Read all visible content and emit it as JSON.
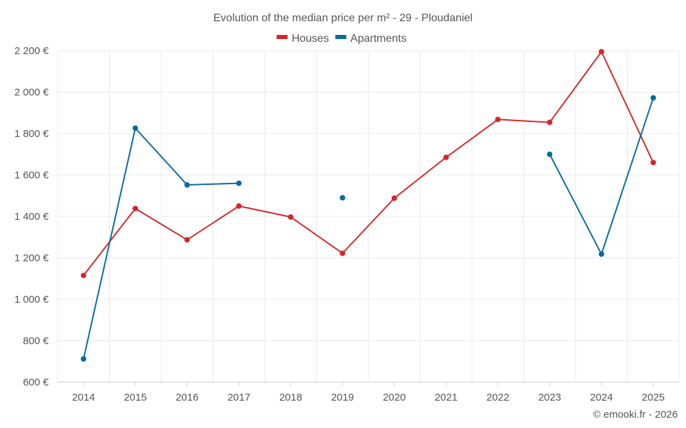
{
  "chart_data": {
    "type": "line",
    "title": "Evolution of the median price per m² - 29 - Ploudaniel",
    "categories": [
      "2014",
      "2015",
      "2016",
      "2017",
      "2018",
      "2019",
      "2020",
      "2021",
      "2022",
      "2023",
      "2024",
      "2025"
    ],
    "y_ticks": [
      600,
      800,
      1000,
      1200,
      1400,
      1600,
      1800,
      2000,
      2200
    ],
    "y_tick_labels": [
      "600 €",
      "800 €",
      "1 000 €",
      "1 200 €",
      "1 400 €",
      "1 600 €",
      "1 800 €",
      "2 000 €",
      "2 200 €"
    ],
    "ylim": [
      600,
      2200
    ],
    "grid": true,
    "legend_position": "top-center",
    "series": [
      {
        "name": "Houses",
        "color": "#d62728",
        "values": [
          1115,
          1438,
          1287,
          1450,
          1397,
          1222,
          1488,
          1685,
          1868,
          1854,
          2195,
          1660
        ]
      },
      {
        "name": "Apartments",
        "color": "#036ba1",
        "values": [
          712,
          1826,
          1552,
          1560,
          null,
          1490,
          null,
          null,
          null,
          1700,
          1218,
          1972
        ]
      }
    ]
  },
  "credit": "© emooki.fr - 2026"
}
